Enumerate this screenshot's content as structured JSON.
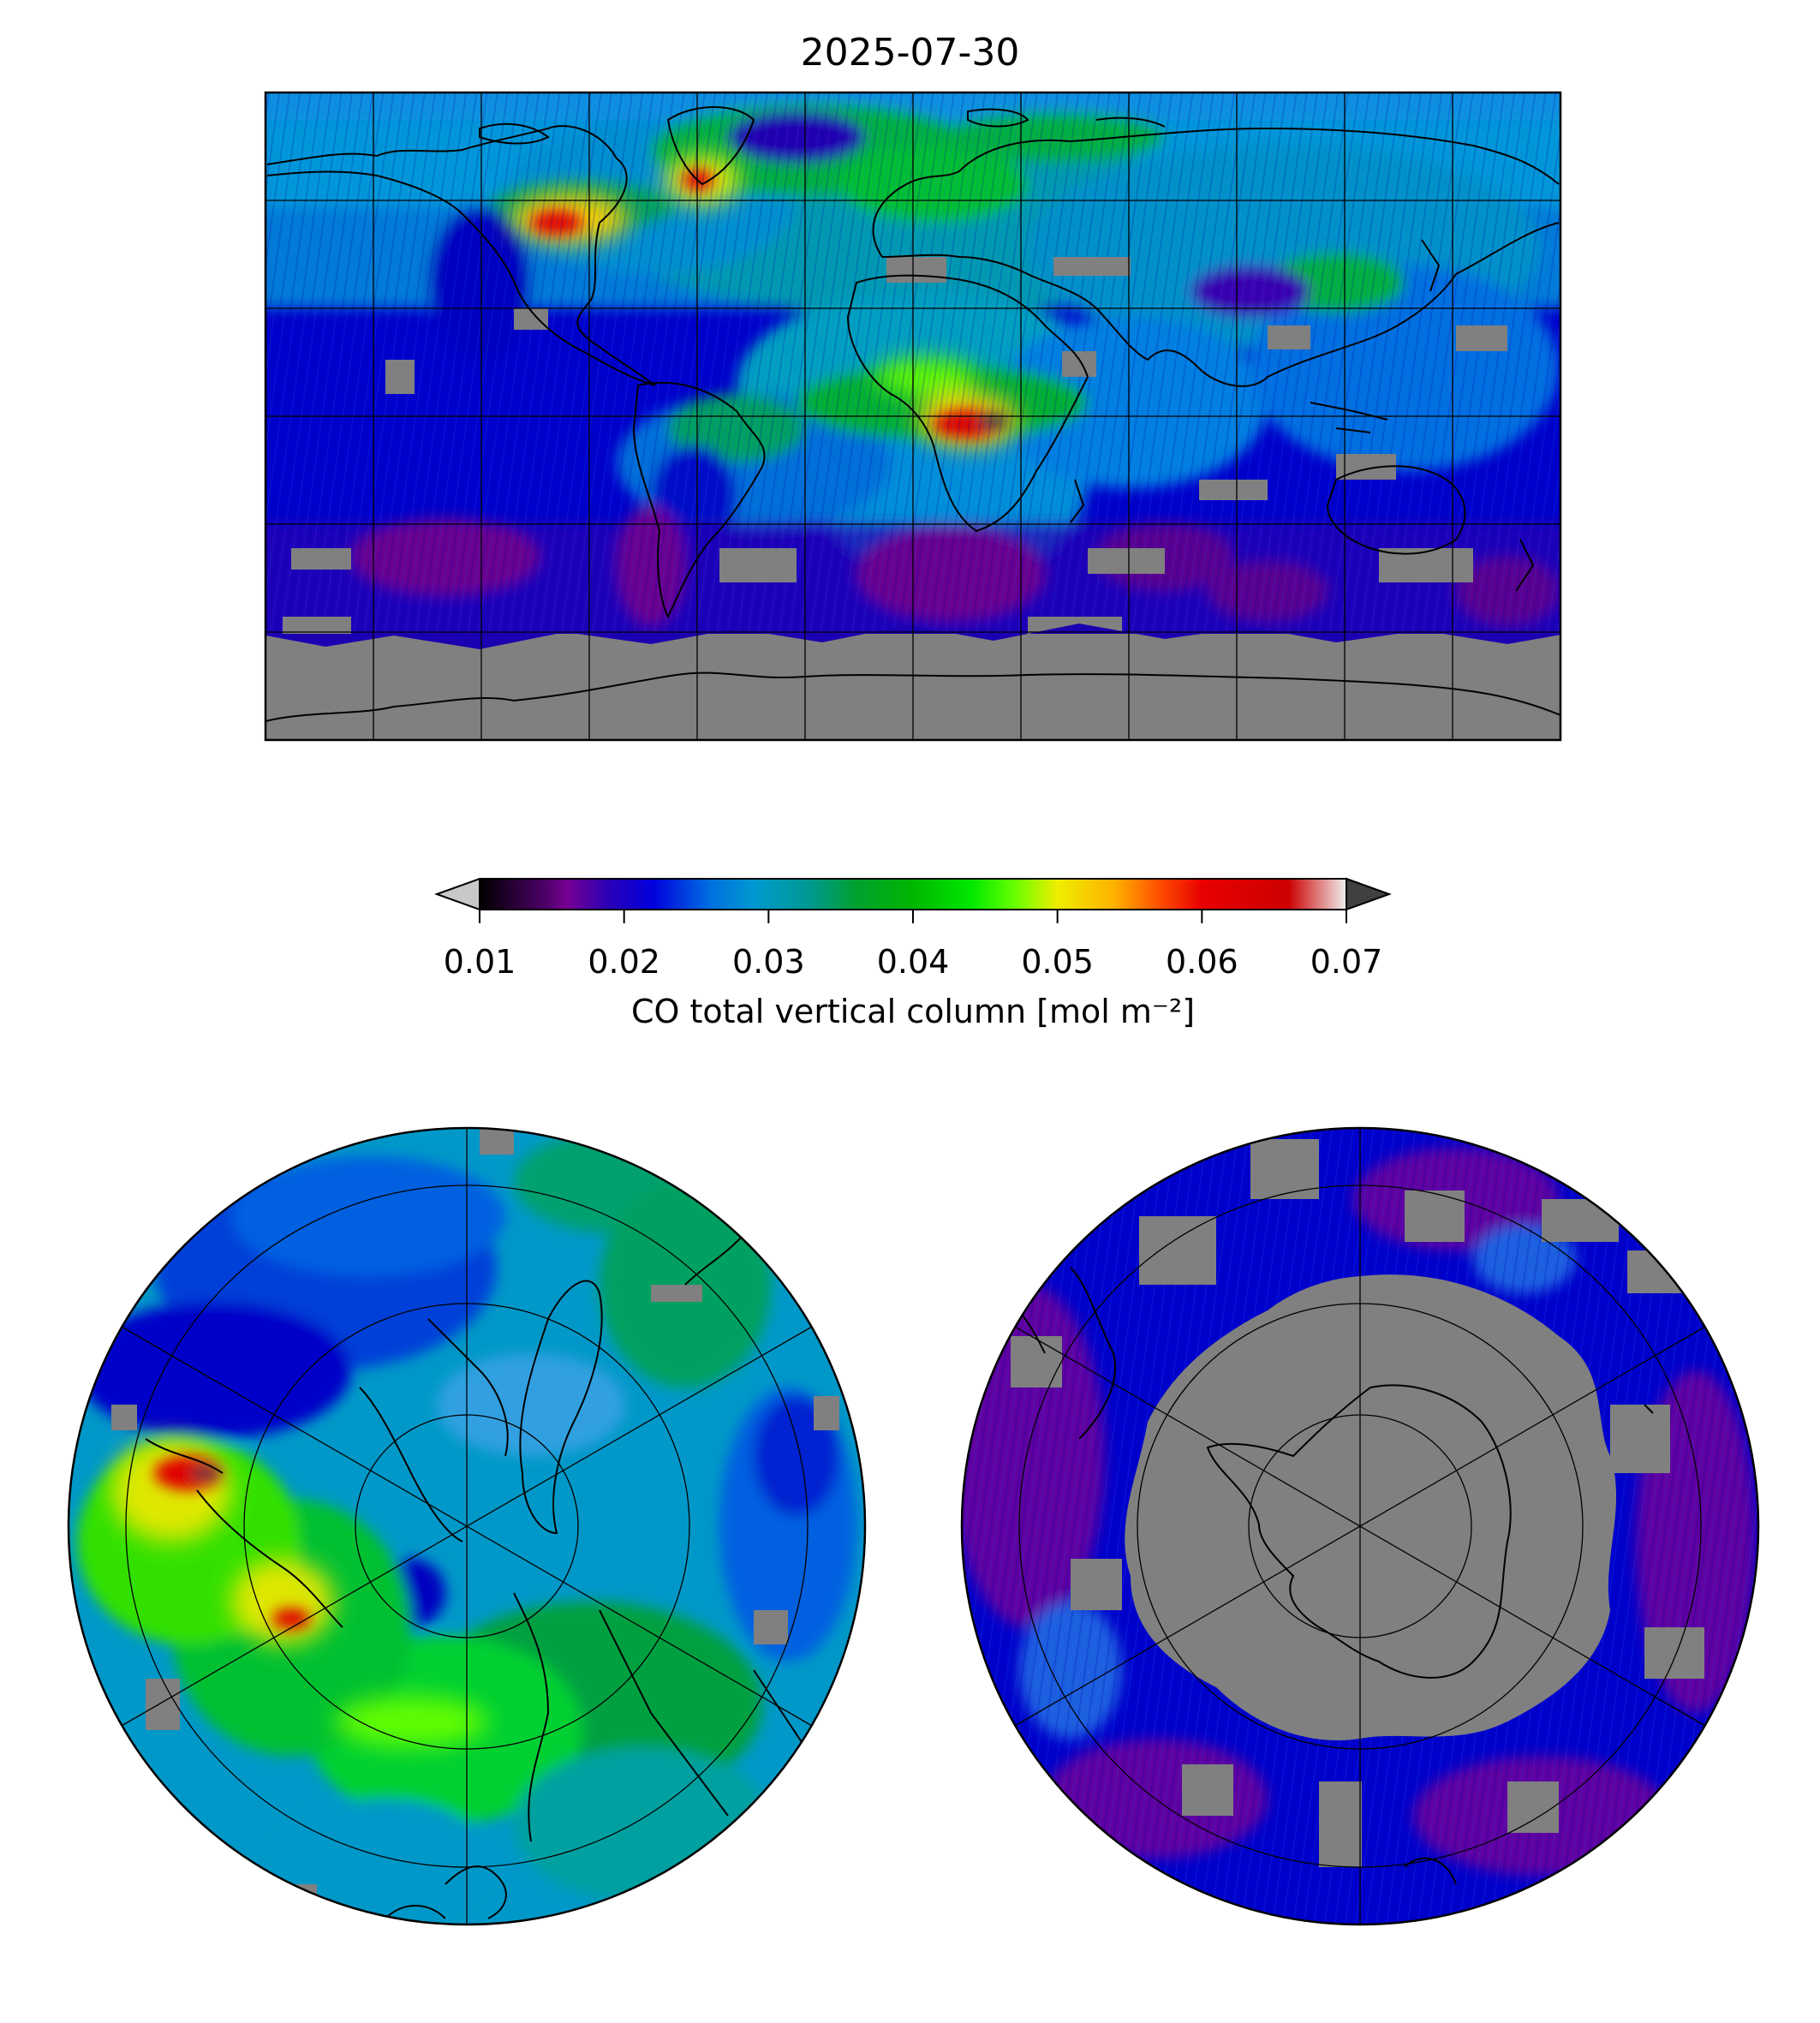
{
  "title": "2025-07-30",
  "colorbar": {
    "label": "CO total vertical column [mol m⁻²]",
    "ticks": [
      "0.01",
      "0.02",
      "0.03",
      "0.04",
      "0.05",
      "0.06",
      "0.07"
    ],
    "vmin": 0.01,
    "vmax": 0.07,
    "extend": "both",
    "under_color": "#c8c8c8",
    "over_color": "#404040",
    "stops": [
      {
        "v": 0.01,
        "c": "#000000"
      },
      {
        "v": 0.0145,
        "c": "#4b0066"
      },
      {
        "v": 0.016,
        "c": "#760090"
      },
      {
        "v": 0.019,
        "c": "#2a00b8"
      },
      {
        "v": 0.022,
        "c": "#0000dd"
      },
      {
        "v": 0.026,
        "c": "#0070e0"
      },
      {
        "v": 0.029,
        "c": "#0099d0"
      },
      {
        "v": 0.033,
        "c": "#00998e"
      },
      {
        "v": 0.036,
        "c": "#00a030"
      },
      {
        "v": 0.04,
        "c": "#00b600"
      },
      {
        "v": 0.044,
        "c": "#00e800"
      },
      {
        "v": 0.047,
        "c": "#66ff00"
      },
      {
        "v": 0.05,
        "c": "#eeee00"
      },
      {
        "v": 0.054,
        "c": "#ffb000"
      },
      {
        "v": 0.057,
        "c": "#ff5000"
      },
      {
        "v": 0.06,
        "c": "#e80000"
      },
      {
        "v": 0.066,
        "c": "#cc0000"
      },
      {
        "v": 0.07,
        "c": "#f0f0f0"
      }
    ]
  },
  "panels": {
    "global": {
      "projection": "equirectangular",
      "nodata_color": "#808080",
      "gridlines": "30 degrees"
    },
    "north_polar": {
      "projection": "north polar stereographic",
      "nodata_color": "#808080"
    },
    "south_polar": {
      "projection": "south polar stereographic",
      "nodata_color": "#808080"
    }
  }
}
